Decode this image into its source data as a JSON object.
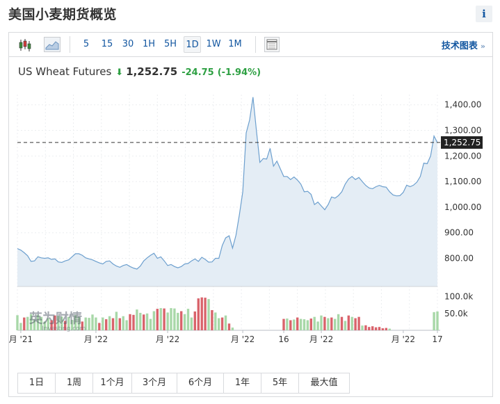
{
  "page": {
    "title": "美国小麦期货概览",
    "info_label": "i"
  },
  "toolbar": {
    "intervals": [
      "5",
      "15",
      "30",
      "1H",
      "5H",
      "1D",
      "1W",
      "1M"
    ],
    "active_interval": "1D",
    "advanced_link": "技术图表",
    "advanced_chevron": "»",
    "icons": [
      "candlestick-icon",
      "area-chart-icon",
      "table-icon"
    ]
  },
  "header": {
    "name": "US Wheat Futures",
    "direction_icon": "down-arrow-icon",
    "price": "1,252.75",
    "change": "-24.75",
    "change_pct": "(-1.94%)",
    "change_color": "#2ea043"
  },
  "range_buttons": [
    "1日",
    "1周",
    "1个月",
    "3个月",
    "6个月",
    "1年",
    "5年",
    "最大值"
  ],
  "watermark": {
    "main": "英为财情",
    "sub": "Investing.com"
  },
  "chart_data": {
    "type": "area",
    "ylim": [
      690,
      1440
    ],
    "y_ticks": [
      "1,400.00",
      "1,300.00",
      "1,200.00",
      "1,100.00",
      "1,000.00",
      "900.00",
      "800.00"
    ],
    "y_tick_values": [
      1400,
      1300,
      1200,
      1100,
      1000,
      900,
      800
    ],
    "current_label": "1,252.75",
    "current_value": 1252.75,
    "x_ticks": [
      "月 '21",
      "月 '22",
      "月 '22",
      "月 '22",
      "16",
      "月 '22",
      "月 '22",
      "17"
    ],
    "x_tick_index": [
      1,
      23,
      44,
      66,
      78,
      89,
      113,
      123
    ],
    "price_series": [
      838,
      832,
      822,
      810,
      788,
      790,
      806,
      802,
      800,
      802,
      796,
      798,
      786,
      784,
      790,
      794,
      806,
      818,
      818,
      812,
      802,
      798,
      794,
      788,
      782,
      778,
      788,
      790,
      778,
      770,
      765,
      772,
      776,
      768,
      762,
      758,
      770,
      790,
      802,
      812,
      820,
      800,
      806,
      790,
      772,
      776,
      768,
      763,
      768,
      778,
      780,
      790,
      798,
      788,
      804,
      796,
      785,
      786,
      800,
      800,
      850,
      880,
      888,
      840,
      890,
      970,
      1060,
      1290,
      1340,
      1430,
      1300,
      1175,
      1190,
      1188,
      1230,
      1160,
      1180,
      1150,
      1120,
      1120,
      1108,
      1118,
      1106,
      1090,
      1060,
      1062,
      1050,
      1010,
      1020,
      1005,
      990,
      1010,
      1040,
      1035,
      1045,
      1060,
      1090,
      1110,
      1120,
      1108,
      1116,
      1100,
      1085,
      1075,
      1072,
      1080,
      1085,
      1080,
      1078,
      1060,
      1048,
      1044,
      1045,
      1058,
      1086,
      1080,
      1086,
      1098,
      1120,
      1172,
      1170,
      1200,
      1278,
      1252
    ],
    "volume_unit": "k",
    "volume_ticks": [
      "100.0k",
      "50.0k"
    ],
    "volume_tick_values": [
      100,
      50
    ],
    "volume_max": 118,
    "volume_series": [
      45,
      22,
      38,
      40,
      48,
      32,
      46,
      40,
      26,
      36,
      30,
      44,
      43,
      41,
      28,
      40,
      31,
      45,
      40,
      26,
      38,
      37,
      47,
      38,
      22,
      38,
      33,
      42,
      36,
      55,
      36,
      42,
      30,
      48,
      46,
      62,
      52,
      47,
      50,
      34,
      57,
      64,
      66,
      65,
      53,
      66,
      65,
      52,
      57,
      48,
      64,
      38,
      56,
      95,
      98,
      97,
      93,
      60,
      53,
      36,
      38,
      44,
      20,
      8,
      0,
      0,
      0,
      0,
      0,
      0,
      0,
      0,
      0,
      0,
      0,
      0,
      0,
      0,
      34,
      35,
      30,
      32,
      38,
      34,
      33,
      30,
      35,
      40,
      26,
      44,
      40,
      36,
      38,
      34,
      48,
      40,
      28,
      44,
      40,
      36,
      40,
      14,
      15,
      10,
      12,
      9,
      10,
      6,
      7,
      5,
      0,
      0,
      0,
      0,
      0,
      0,
      0,
      0,
      0,
      0,
      0,
      0,
      54,
      56
    ],
    "volume_red_index": [
      2,
      10,
      11,
      14,
      19,
      24,
      26,
      28,
      30,
      33,
      34,
      37,
      41,
      43,
      48,
      52,
      53,
      54,
      55,
      57,
      60,
      62,
      78,
      80,
      82,
      86,
      90,
      92,
      95,
      97,
      99,
      100,
      102,
      103,
      104,
      105,
      106,
      107,
      108
    ]
  }
}
